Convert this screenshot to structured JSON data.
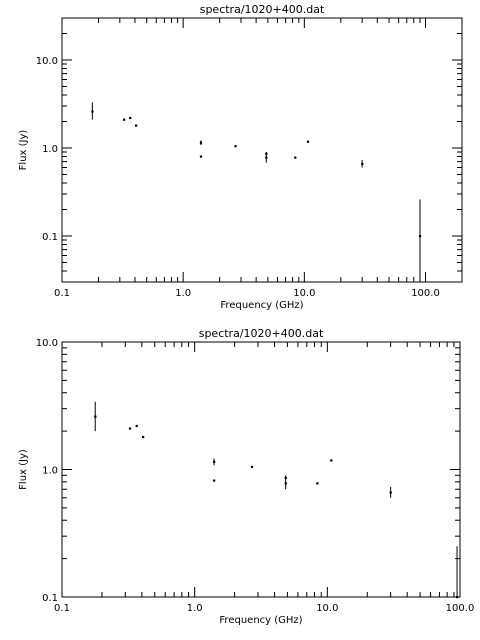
{
  "chart_data": [
    {
      "type": "scatter",
      "title": "spectra/1020+400.dat",
      "xlabel": "Frequency (GHz)",
      "ylabel": "Flux (Jy)",
      "xscale": "log",
      "yscale": "log",
      "xlim": [
        0.1,
        200
      ],
      "ylim": [
        0.03,
        30
      ],
      "xticks": [
        0.1,
        1.0,
        10.0,
        100.0
      ],
      "xtick_labels": [
        "0.1",
        "1.0",
        "10.0",
        "100.0"
      ],
      "yticks": [
        0.1,
        1.0,
        10.0
      ],
      "ytick_labels": [
        "0.1",
        "1.0",
        "10.0"
      ],
      "grid": false,
      "points": [
        {
          "x": 0.178,
          "y": 2.6,
          "ylow": 2.1,
          "yhigh": 3.3
        },
        {
          "x": 0.325,
          "y": 2.1
        },
        {
          "x": 0.365,
          "y": 2.2
        },
        {
          "x": 0.408,
          "y": 1.8
        },
        {
          "x": 1.4,
          "y": 1.15,
          "ylow": 1.08,
          "yhigh": 1.22
        },
        {
          "x": 1.4,
          "y": 0.8
        },
        {
          "x": 2.7,
          "y": 1.05
        },
        {
          "x": 4.85,
          "y": 0.78,
          "ylow": 0.68,
          "yhigh": 0.9
        },
        {
          "x": 4.85,
          "y": 0.86
        },
        {
          "x": 8.4,
          "y": 0.78
        },
        {
          "x": 10.7,
          "y": 1.18
        },
        {
          "x": 30.0,
          "y": 0.66,
          "ylow": 0.6,
          "yhigh": 0.73
        },
        {
          "x": 90.0,
          "y": 0.1,
          "ylow": 0.03,
          "yhigh": 0.26
        }
      ]
    },
    {
      "type": "scatter",
      "title": "spectra/1020+400.dat",
      "xlabel": "Frequency (GHz)",
      "ylabel": "Flux (Jy)",
      "xscale": "log",
      "yscale": "log",
      "xlim": [
        0.1,
        100
      ],
      "ylim": [
        0.1,
        10
      ],
      "xticks": [
        0.1,
        1.0,
        10.0,
        100.0
      ],
      "xtick_labels": [
        "0.1",
        "1.0",
        "10.0",
        "100.0"
      ],
      "yticks": [
        0.1,
        1.0,
        10.0
      ],
      "ytick_labels": [
        "0.1",
        "1.0",
        "10.0"
      ],
      "grid": false,
      "points": [
        {
          "x": 0.178,
          "y": 2.6,
          "ylow": 2.0,
          "yhigh": 3.4
        },
        {
          "x": 0.325,
          "y": 2.1
        },
        {
          "x": 0.365,
          "y": 2.2
        },
        {
          "x": 0.408,
          "y": 1.8
        },
        {
          "x": 1.4,
          "y": 1.15,
          "ylow": 1.08,
          "yhigh": 1.22
        },
        {
          "x": 1.4,
          "y": 0.82
        },
        {
          "x": 2.7,
          "y": 1.05
        },
        {
          "x": 4.85,
          "y": 0.78,
          "ylow": 0.7,
          "yhigh": 0.9
        },
        {
          "x": 4.85,
          "y": 0.86
        },
        {
          "x": 8.4,
          "y": 0.78
        },
        {
          "x": 10.7,
          "y": 1.18
        },
        {
          "x": 30.0,
          "y": 0.66,
          "ylow": 0.6,
          "yhigh": 0.73
        },
        {
          "x": 95.0,
          "y": 0.1,
          "ylow": 0.1,
          "yhigh": 0.25
        }
      ]
    }
  ]
}
